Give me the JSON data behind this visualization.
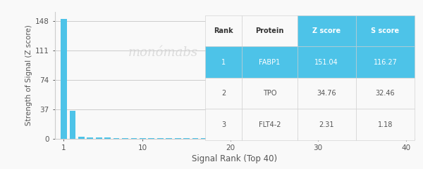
{
  "bar_x": [
    1,
    2,
    3,
    4,
    5,
    6,
    7,
    8,
    9,
    10,
    11,
    12,
    13,
    14,
    15,
    16,
    17,
    18,
    19,
    20,
    21,
    22,
    23,
    24,
    25,
    26,
    27,
    28,
    29,
    30,
    31,
    32,
    33,
    34,
    35,
    36,
    37,
    38,
    39,
    40
  ],
  "bar_heights": [
    151.04,
    34.76,
    2.31,
    1.5,
    1.2,
    1.0,
    0.9,
    0.8,
    0.75,
    0.7,
    0.65,
    0.62,
    0.6,
    0.58,
    0.55,
    0.52,
    0.5,
    0.48,
    0.46,
    0.44,
    0.42,
    0.4,
    0.38,
    0.36,
    0.34,
    0.32,
    0.3,
    0.28,
    0.26,
    0.24,
    0.22,
    0.2,
    0.18,
    0.16,
    0.14,
    0.12,
    0.1,
    0.08,
    0.06,
    0.04
  ],
  "bar_color": "#4dc3e8",
  "bar_width": 0.7,
  "xlim": [
    0,
    41
  ],
  "ylim": [
    0,
    160
  ],
  "yticks": [
    0,
    37,
    74,
    111,
    148
  ],
  "xticks": [
    1,
    10,
    20,
    30,
    40
  ],
  "xlabel": "Signal Rank (Top 40)",
  "ylabel": "Strength of Signal (Z score)",
  "bg_color": "#f9f9f9",
  "grid_color": "#cccccc",
  "watermark_text": "monómabs",
  "watermark_color": "#d0d0d0",
  "table_col_labels": [
    "Rank",
    "Protein",
    "Z score",
    "S score"
  ],
  "table_rows": [
    [
      "1",
      "FABP1",
      "151.04",
      "116.27"
    ],
    [
      "2",
      "TPO",
      "34.76",
      "32.46"
    ],
    [
      "3",
      "FLT4-2",
      "2.31",
      "1.18"
    ]
  ],
  "table_header_bg": "#f9f9f9",
  "table_row1_bg": "#4dc3e8",
  "table_row_bg": "#f9f9f9",
  "table_header_color": "#333333",
  "table_row1_color": "#ffffff",
  "table_row_color": "#555555",
  "table_zscore_header_bg": "#4dc3e8",
  "table_zscore_header_color": "#ffffff"
}
